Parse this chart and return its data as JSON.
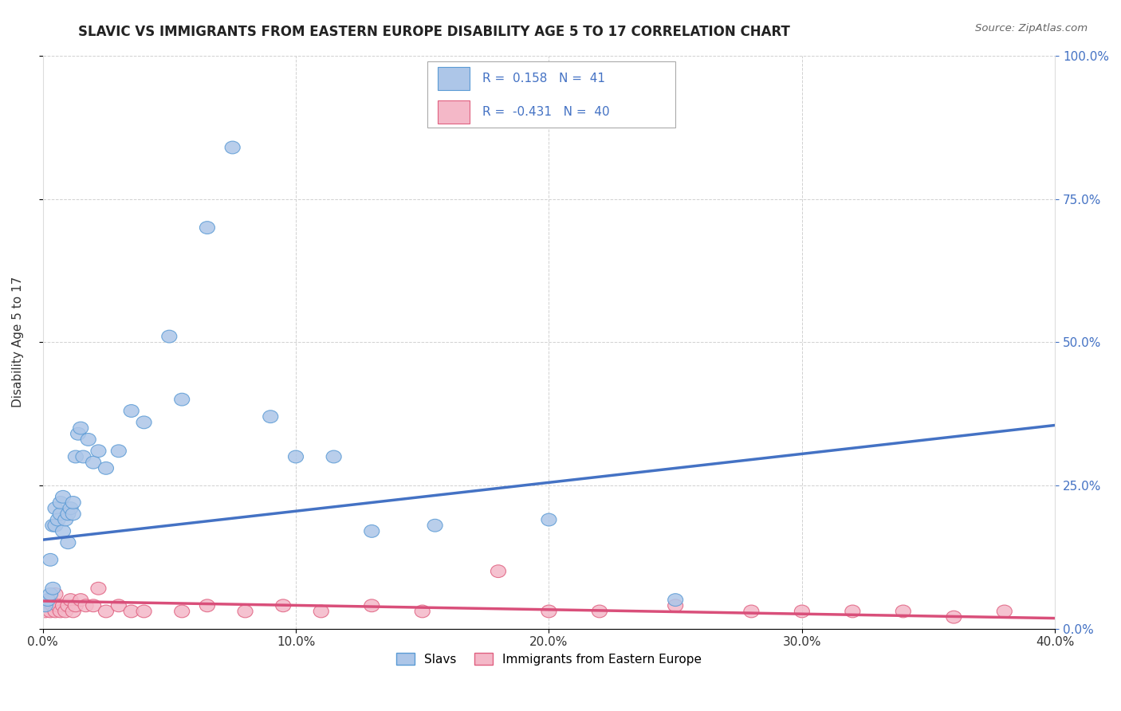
{
  "title": "SLAVIC VS IMMIGRANTS FROM EASTERN EUROPE DISABILITY AGE 5 TO 17 CORRELATION CHART",
  "source": "Source: ZipAtlas.com",
  "ylabel": "Disability Age 5 to 17",
  "xlim": [
    0.0,
    0.4
  ],
  "ylim": [
    0.0,
    1.0
  ],
  "xticks": [
    0.0,
    0.1,
    0.2,
    0.3,
    0.4
  ],
  "xtick_labels": [
    "0.0%",
    "10.0%",
    "20.0%",
    "30.0%",
    "40.0%"
  ],
  "yticks": [
    0.0,
    0.25,
    0.5,
    0.75,
    1.0
  ],
  "ytick_labels_left": [
    "",
    "",
    "",
    "",
    ""
  ],
  "ytick_labels_right": [
    "0.0%",
    "25.0%",
    "50.0%",
    "75.0%",
    "100.0%"
  ],
  "background_color": "#ffffff",
  "grid_color": "#cccccc",
  "slavs_color": "#adc6e8",
  "slavs_edge_color": "#5b9bd5",
  "immigrants_color": "#f4b8c8",
  "immigrants_edge_color": "#e06080",
  "trend_slavs_color": "#4472c4",
  "trend_immigrants_color": "#d94f7a",
  "legend_R_slavs": "0.158",
  "legend_N_slavs": "41",
  "legend_R_immigrants": "-0.431",
  "legend_N_immigrants": "40",
  "trend_slavs_x0": 0.0,
  "trend_slavs_y0": 0.155,
  "trend_slavs_x1": 0.4,
  "trend_slavs_y1": 0.355,
  "trend_imm_x0": 0.0,
  "trend_imm_y0": 0.048,
  "trend_imm_x1": 0.4,
  "trend_imm_y1": 0.018,
  "slavs_x": [
    0.001,
    0.002,
    0.003,
    0.003,
    0.004,
    0.004,
    0.005,
    0.005,
    0.006,
    0.007,
    0.007,
    0.008,
    0.008,
    0.009,
    0.01,
    0.01,
    0.011,
    0.012,
    0.012,
    0.013,
    0.014,
    0.015,
    0.016,
    0.018,
    0.02,
    0.022,
    0.025,
    0.03,
    0.035,
    0.04,
    0.05,
    0.055,
    0.065,
    0.075,
    0.09,
    0.1,
    0.115,
    0.13,
    0.155,
    0.2,
    0.25
  ],
  "slavs_y": [
    0.04,
    0.05,
    0.06,
    0.12,
    0.07,
    0.18,
    0.18,
    0.21,
    0.19,
    0.2,
    0.22,
    0.17,
    0.23,
    0.19,
    0.15,
    0.2,
    0.21,
    0.2,
    0.22,
    0.3,
    0.34,
    0.35,
    0.3,
    0.33,
    0.29,
    0.31,
    0.28,
    0.31,
    0.38,
    0.36,
    0.51,
    0.4,
    0.7,
    0.84,
    0.37,
    0.3,
    0.3,
    0.17,
    0.18,
    0.19,
    0.05
  ],
  "immigrants_x": [
    0.001,
    0.002,
    0.003,
    0.003,
    0.004,
    0.005,
    0.005,
    0.006,
    0.007,
    0.008,
    0.009,
    0.01,
    0.011,
    0.012,
    0.013,
    0.015,
    0.017,
    0.02,
    0.022,
    0.025,
    0.03,
    0.035,
    0.04,
    0.055,
    0.065,
    0.08,
    0.095,
    0.11,
    0.13,
    0.15,
    0.18,
    0.2,
    0.22,
    0.25,
    0.28,
    0.3,
    0.32,
    0.34,
    0.36,
    0.38
  ],
  "immigrants_y": [
    0.03,
    0.04,
    0.03,
    0.05,
    0.04,
    0.03,
    0.06,
    0.04,
    0.03,
    0.04,
    0.03,
    0.04,
    0.05,
    0.03,
    0.04,
    0.05,
    0.04,
    0.04,
    0.07,
    0.03,
    0.04,
    0.03,
    0.03,
    0.03,
    0.04,
    0.03,
    0.04,
    0.03,
    0.04,
    0.03,
    0.1,
    0.03,
    0.03,
    0.04,
    0.03,
    0.03,
    0.03,
    0.03,
    0.02,
    0.03
  ]
}
